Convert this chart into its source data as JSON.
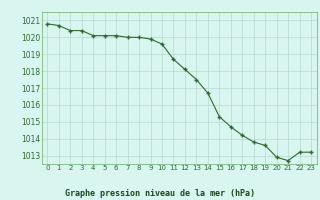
{
  "hours": [
    0,
    1,
    2,
    3,
    4,
    5,
    6,
    7,
    8,
    9,
    10,
    11,
    12,
    13,
    14,
    15,
    16,
    17,
    18,
    19,
    20,
    21,
    22,
    23
  ],
  "pressure": [
    1020.8,
    1020.7,
    1020.4,
    1020.4,
    1020.1,
    1020.1,
    1020.1,
    1020.0,
    1020.0,
    1019.9,
    1019.6,
    1018.7,
    1018.1,
    1017.5,
    1016.7,
    1015.3,
    1014.7,
    1014.2,
    1013.8,
    1013.6,
    1012.9,
    1012.7,
    1013.2,
    1013.2
  ],
  "line_color": "#2d6a2d",
  "marker_color": "#2d6a2d",
  "bg_color": "#d8f5f0",
  "grid_color": "#b8d8d0",
  "tick_label_color": "#2d6a2d",
  "xlabel": "Graphe pression niveau de la mer (hPa)",
  "xlabel_color": "#1a4a1a",
  "ylim": [
    1012.5,
    1021.5
  ],
  "yticks": [
    1013,
    1014,
    1015,
    1016,
    1017,
    1018,
    1019,
    1020,
    1021
  ],
  "xticks": [
    0,
    1,
    2,
    3,
    4,
    5,
    6,
    7,
    8,
    9,
    10,
    11,
    12,
    13,
    14,
    15,
    16,
    17,
    18,
    19,
    20,
    21,
    22,
    23
  ],
  "spine_color": "#6aaa6a"
}
